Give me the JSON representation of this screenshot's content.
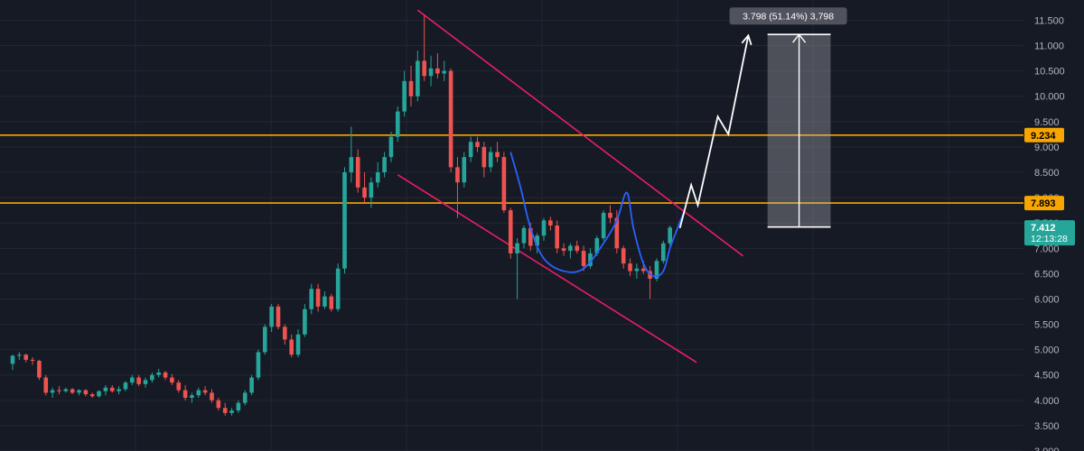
{
  "chart_data": {
    "type": "candlestick",
    "title": "",
    "xlabel": "",
    "ylabel": "",
    "ylim": [
      3.0,
      11.9
    ],
    "y_ticks": [
      "3.000",
      "3.500",
      "4.000",
      "4.500",
      "5.000",
      "5.500",
      "6.000",
      "6.500",
      "7.000",
      "7.500",
      "8.000",
      "8.500",
      "9.000",
      "9.500",
      "10.000",
      "10.500",
      "11.000",
      "11.500"
    ],
    "grid": true,
    "colors": {
      "background": "#161a25",
      "grid": "#232733",
      "up": "#26a69a",
      "down": "#ef5350",
      "level": "#f7a600",
      "channel": "#e91e63",
      "cup": "#2962ff",
      "projection": "#ffffff",
      "price_tag": "#26a69a"
    },
    "candles": [
      [
        4.72,
        4.9,
        4.6,
        4.88
      ],
      [
        4.88,
        4.95,
        4.8,
        4.9
      ],
      [
        4.9,
        4.92,
        4.75,
        4.8
      ],
      [
        4.8,
        4.85,
        4.7,
        4.78
      ],
      [
        4.78,
        4.8,
        4.4,
        4.45
      ],
      [
        4.45,
        4.5,
        4.1,
        4.15
      ],
      [
        4.15,
        4.25,
        4.05,
        4.2
      ],
      [
        4.2,
        4.28,
        4.12,
        4.18
      ],
      [
        4.18,
        4.25,
        4.15,
        4.22
      ],
      [
        4.22,
        4.24,
        4.12,
        4.15
      ],
      [
        4.15,
        4.22,
        4.1,
        4.2
      ],
      [
        4.2,
        4.22,
        4.08,
        4.12
      ],
      [
        4.12,
        4.15,
        4.05,
        4.08
      ],
      [
        4.08,
        4.2,
        4.05,
        4.18
      ],
      [
        4.18,
        4.3,
        4.1,
        4.25
      ],
      [
        4.25,
        4.3,
        4.15,
        4.18
      ],
      [
        4.18,
        4.28,
        4.12,
        4.22
      ],
      [
        4.22,
        4.38,
        4.18,
        4.35
      ],
      [
        4.35,
        4.5,
        4.3,
        4.45
      ],
      [
        4.45,
        4.5,
        4.28,
        4.32
      ],
      [
        4.32,
        4.45,
        4.25,
        4.4
      ],
      [
        4.4,
        4.55,
        4.35,
        4.5
      ],
      [
        4.5,
        4.62,
        4.45,
        4.55
      ],
      [
        4.55,
        4.58,
        4.4,
        4.45
      ],
      [
        4.45,
        4.52,
        4.3,
        4.35
      ],
      [
        4.35,
        4.4,
        4.15,
        4.2
      ],
      [
        4.2,
        4.3,
        4.0,
        4.05
      ],
      [
        4.05,
        4.15,
        3.95,
        4.1
      ],
      [
        4.1,
        4.25,
        4.05,
        4.2
      ],
      [
        4.2,
        4.28,
        4.1,
        4.15
      ],
      [
        4.15,
        4.22,
        3.95,
        4.0
      ],
      [
        4.0,
        4.05,
        3.8,
        3.85
      ],
      [
        3.85,
        3.95,
        3.7,
        3.75
      ],
      [
        3.75,
        3.85,
        3.7,
        3.8
      ],
      [
        3.8,
        4.0,
        3.75,
        3.95
      ],
      [
        3.95,
        4.2,
        3.9,
        4.15
      ],
      [
        4.15,
        4.5,
        4.1,
        4.45
      ],
      [
        4.45,
        5.0,
        4.4,
        4.95
      ],
      [
        4.95,
        5.5,
        4.9,
        5.45
      ],
      [
        5.45,
        5.9,
        5.35,
        5.85
      ],
      [
        5.85,
        5.9,
        5.4,
        5.45
      ],
      [
        5.45,
        5.5,
        5.1,
        5.2
      ],
      [
        5.2,
        5.3,
        4.85,
        4.9
      ],
      [
        4.9,
        5.4,
        4.85,
        5.3
      ],
      [
        5.3,
        5.9,
        5.25,
        5.8
      ],
      [
        5.8,
        6.3,
        5.7,
        6.2
      ],
      [
        6.2,
        6.3,
        5.75,
        5.85
      ],
      [
        5.85,
        6.15,
        5.8,
        6.05
      ],
      [
        6.05,
        6.1,
        5.75,
        5.8
      ],
      [
        5.8,
        6.7,
        5.75,
        6.6
      ],
      [
        6.6,
        8.6,
        6.5,
        8.5
      ],
      [
        8.5,
        9.4,
        8.3,
        8.8
      ],
      [
        8.8,
        8.95,
        8.1,
        8.2
      ],
      [
        8.2,
        8.5,
        7.9,
        8.0
      ],
      [
        8.0,
        8.4,
        7.8,
        8.3
      ],
      [
        8.3,
        8.7,
        8.2,
        8.5
      ],
      [
        8.5,
        8.9,
        8.4,
        8.8
      ],
      [
        8.8,
        9.3,
        8.7,
        9.2
      ],
      [
        9.2,
        9.8,
        9.1,
        9.7
      ],
      [
        9.7,
        10.5,
        9.6,
        10.3
      ],
      [
        10.3,
        10.6,
        9.8,
        10.0
      ],
      [
        10.0,
        10.9,
        9.9,
        10.7
      ],
      [
        10.7,
        11.6,
        10.3,
        10.4
      ],
      [
        10.4,
        10.8,
        10.2,
        10.55
      ],
      [
        10.55,
        10.85,
        10.35,
        10.45
      ],
      [
        10.45,
        10.7,
        10.3,
        10.5
      ],
      [
        10.5,
        10.55,
        8.5,
        8.6
      ],
      [
        8.6,
        8.8,
        7.6,
        8.3
      ],
      [
        8.3,
        8.9,
        8.2,
        8.8
      ],
      [
        8.8,
        9.2,
        8.7,
        9.1
      ],
      [
        9.1,
        9.2,
        8.9,
        9.0
      ],
      [
        9.0,
        9.1,
        8.4,
        8.6
      ],
      [
        8.6,
        9.0,
        8.5,
        8.9
      ],
      [
        8.9,
        9.1,
        8.7,
        8.8
      ],
      [
        8.8,
        8.9,
        7.7,
        7.75
      ],
      [
        7.75,
        7.8,
        6.8,
        6.9
      ],
      [
        6.9,
        7.2,
        6.0,
        7.1
      ],
      [
        7.1,
        7.45,
        7.0,
        7.4
      ],
      [
        7.4,
        7.5,
        6.95,
        7.05
      ],
      [
        7.05,
        7.3,
        6.9,
        7.25
      ],
      [
        7.25,
        7.6,
        7.15,
        7.55
      ],
      [
        7.55,
        7.62,
        7.35,
        7.45
      ],
      [
        7.45,
        7.55,
        6.9,
        7.0
      ],
      [
        7.0,
        7.1,
        6.85,
        6.95
      ],
      [
        6.95,
        7.1,
        6.8,
        7.05
      ],
      [
        7.05,
        7.15,
        6.9,
        6.95
      ],
      [
        6.95,
        7.05,
        6.55,
        6.65
      ],
      [
        6.65,
        7.0,
        6.6,
        6.9
      ],
      [
        6.9,
        7.25,
        6.85,
        7.2
      ],
      [
        7.2,
        7.75,
        7.15,
        7.7
      ],
      [
        7.7,
        7.85,
        7.5,
        7.6
      ],
      [
        7.6,
        7.75,
        6.9,
        7.0
      ],
      [
        7.0,
        7.05,
        6.6,
        6.7
      ],
      [
        6.7,
        6.8,
        6.45,
        6.55
      ],
      [
        6.55,
        6.7,
        6.4,
        6.6
      ],
      [
        6.6,
        6.75,
        6.5,
        6.55
      ],
      [
        6.55,
        6.65,
        6.0,
        6.4
      ],
      [
        6.4,
        6.8,
        6.35,
        6.75
      ],
      [
        6.75,
        7.15,
        6.7,
        7.1
      ],
      [
        7.1,
        7.45,
        7.05,
        7.41
      ]
    ],
    "horizontal_levels": [
      {
        "value": 9.234,
        "label": "9.234"
      },
      {
        "value": 7.893,
        "label": "7.893"
      }
    ],
    "current_price": {
      "value": 7.412,
      "label": "7.412",
      "timer": "12:13:28"
    },
    "channel_lines": [
      {
        "from": [
          61,
          11.7
        ],
        "to": [
          110,
          6.85
        ]
      },
      {
        "from": [
          58,
          8.45
        ],
        "to": [
          103,
          4.75
        ]
      }
    ],
    "cup_handle_curve": [
      [
        75,
        8.9
      ],
      [
        76.5,
        8.2
      ],
      [
        78,
        7.4
      ],
      [
        80,
        6.8
      ],
      [
        83,
        6.55
      ],
      [
        86,
        6.6
      ],
      [
        89,
        7.1
      ],
      [
        91,
        7.55
      ],
      [
        92.5,
        8.1
      ],
      [
        93.5,
        7.4
      ],
      [
        95,
        6.7
      ],
      [
        96.5,
        6.45
      ],
      [
        98,
        6.55
      ],
      [
        99,
        7.0
      ],
      [
        100,
        7.35
      ],
      [
        101.2,
        7.75
      ]
    ],
    "projection_path": [
      [
        100.5,
        7.4
      ],
      [
        102.2,
        8.25
      ],
      [
        103.2,
        7.85
      ],
      [
        106.2,
        9.6
      ],
      [
        107.8,
        9.25
      ],
      [
        110.8,
        11.2
      ]
    ],
    "measure_box": {
      "x_start": 113.7,
      "x_end": 123.2,
      "low": 7.42,
      "high": 11.22,
      "label": "3.798 (51.14%) 3,798"
    }
  }
}
